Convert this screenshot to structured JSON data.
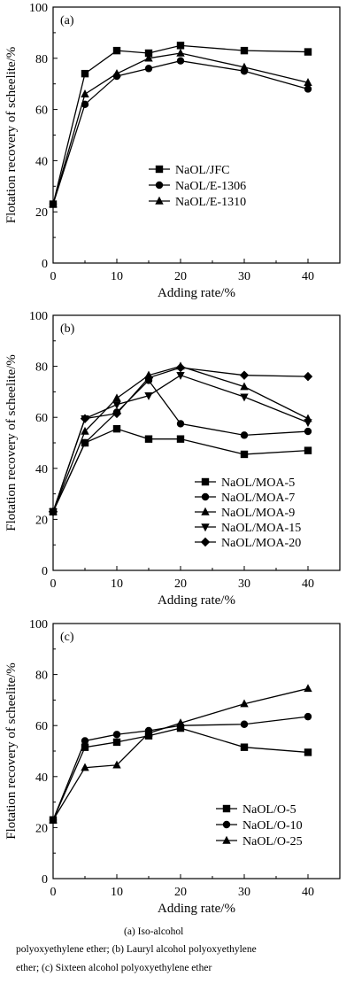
{
  "chart_data": [
    {
      "type": "line",
      "panel_label": "(a)",
      "xlabel": "Adding rate/%",
      "ylabel": "Flotation recovery of scheelite/%",
      "x_ticks": [
        "0",
        "10",
        "20",
        "30",
        "40"
      ],
      "y_ticks": [
        "0",
        "20",
        "40",
        "60",
        "80",
        "100"
      ],
      "xlim": [
        0,
        45
      ],
      "ylim": [
        0,
        100
      ],
      "legend_position": "center-right",
      "series": [
        {
          "name": "NaOL/JFC",
          "marker": "square",
          "x": [
            0,
            5,
            10,
            15,
            20,
            30,
            40
          ],
          "y": [
            23,
            74,
            83,
            82,
            85,
            83,
            82.5
          ]
        },
        {
          "name": "NaOL/E-1306",
          "marker": "circle",
          "x": [
            0,
            5,
            10,
            15,
            20,
            30,
            40
          ],
          "y": [
            23,
            62,
            73,
            76,
            79,
            75,
            68
          ]
        },
        {
          "name": "NaOL/E-1310",
          "marker": "triangle-up",
          "x": [
            0,
            5,
            10,
            15,
            20,
            30,
            40
          ],
          "y": [
            23,
            66,
            74,
            80,
            82,
            76.5,
            70.5
          ]
        }
      ]
    },
    {
      "type": "line",
      "panel_label": "(b)",
      "xlabel": "Adding rate/%",
      "ylabel": "Flotation recovery of scheelite/%",
      "x_ticks": [
        "0",
        "10",
        "20",
        "30",
        "40"
      ],
      "y_ticks": [
        "0",
        "20",
        "40",
        "60",
        "80",
        "100"
      ],
      "xlim": [
        0,
        45
      ],
      "ylim": [
        0,
        100
      ],
      "legend_position": "bottom-right",
      "series": [
        {
          "name": "NaOL/MOA-5",
          "marker": "square",
          "x": [
            0,
            5,
            10,
            15,
            20,
            30,
            40
          ],
          "y": [
            23,
            50,
            55.5,
            51.5,
            51.5,
            45.5,
            47
          ]
        },
        {
          "name": "NaOL/MOA-7",
          "marker": "circle",
          "x": [
            0,
            5,
            10,
            15,
            20,
            30,
            40
          ],
          "y": [
            23,
            50,
            62,
            74.5,
            57.5,
            53,
            54.5
          ]
        },
        {
          "name": "NaOL/MOA-9",
          "marker": "triangle-up",
          "x": [
            0,
            5,
            10,
            15,
            20,
            30,
            40
          ],
          "y": [
            23,
            54.5,
            67.5,
            76.5,
            80,
            72,
            59.5
          ]
        },
        {
          "name": "NaOL/MOA-15",
          "marker": "triangle-down",
          "x": [
            0,
            5,
            10,
            15,
            20,
            30,
            40
          ],
          "y": [
            23,
            59.5,
            65,
            68.5,
            76.5,
            68,
            58
          ]
        },
        {
          "name": "NaOL/MOA-20",
          "marker": "diamond",
          "x": [
            0,
            5,
            10,
            15,
            20,
            30,
            40
          ],
          "y": [
            23,
            59.5,
            61.5,
            75.5,
            79.5,
            76.5,
            76
          ]
        }
      ]
    },
    {
      "type": "line",
      "panel_label": "(c)",
      "xlabel": "Adding rate/%",
      "ylabel": "Flotation recovery of scheelite/%",
      "x_ticks": [
        "0",
        "10",
        "20",
        "30",
        "40"
      ],
      "y_ticks": [
        "0",
        "20",
        "40",
        "60",
        "80",
        "100"
      ],
      "xlim": [
        0,
        45
      ],
      "ylim": [
        0,
        100
      ],
      "legend_position": "bottom-right",
      "series": [
        {
          "name": "NaOL/O-5",
          "marker": "square",
          "x": [
            0,
            5,
            10,
            15,
            20,
            30,
            40
          ],
          "y": [
            23,
            51.5,
            53.5,
            56,
            59,
            51.5,
            49.5
          ]
        },
        {
          "name": "NaOL/O-10",
          "marker": "circle",
          "x": [
            0,
            5,
            10,
            15,
            20,
            30,
            40
          ],
          "y": [
            23,
            54,
            56.5,
            58,
            60,
            60.5,
            63.5
          ]
        },
        {
          "name": "NaOL/O-25",
          "marker": "triangle-up",
          "x": [
            0,
            5,
            10,
            15,
            20,
            30,
            40
          ],
          "y": [
            23,
            43.5,
            44.5,
            57,
            61,
            68.5,
            74.5
          ]
        }
      ]
    }
  ],
  "caption": {
    "line1": "(a)  Iso-alcohol",
    "line2": "polyoxyethylene  ether;  (b)  Lauryl  alcohol  polyoxyethylene",
    "line3": "ether; (c) Sixteen alcohol polyoxyethylene ether"
  }
}
